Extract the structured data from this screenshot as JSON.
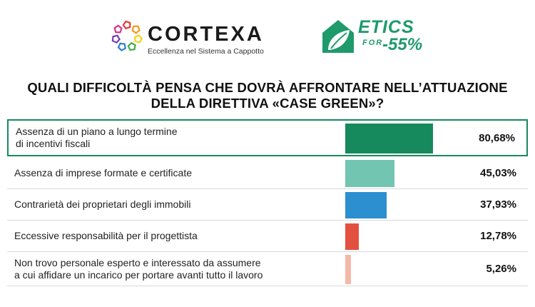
{
  "logos": {
    "cortexa": {
      "name": "CORTEXA",
      "tagline": "Eccellenza nel Sistema a Cappotto",
      "ring_colors": [
        "#e23b3b",
        "#f39a1e",
        "#f6d21f",
        "#3fae49",
        "#2a7fd4",
        "#7a3fb0",
        "#d6338a"
      ]
    },
    "etics": {
      "word": "ETICS",
      "for": "FOR",
      "target": "-55%",
      "color": "#1e9a6b"
    }
  },
  "title": {
    "line1": "QUALI DIFFICOLTÀ PENSA CHE DOVRÀ AFFRONTARE NELL’ATTUAZIONE",
    "line2": "DELLA DIRETTIVA «CASE GREEN»?"
  },
  "chart_data": {
    "type": "bar",
    "orientation": "horizontal",
    "xlim": [
      0,
      100
    ],
    "grid": false,
    "legend": "none",
    "categories": [
      [
        "Assenza di un piano a lungo termine",
        "di incentivi fiscali"
      ],
      [
        "Assenza di imprese formate e certificate"
      ],
      [
        "Contrarietà dei proprietari degli immobili"
      ],
      [
        "Eccessive responsabilità per il progettista"
      ],
      [
        "Non trovo personale esperto e interessato da assumere",
        "a cui affidare un incarico per portare avanti tutto il lavoro"
      ]
    ],
    "values": [
      80.68,
      45.03,
      37.93,
      12.78,
      5.26
    ],
    "value_labels": [
      "80,68%",
      "45,03%",
      "37,93%",
      "12,78%",
      "5,26%"
    ],
    "bar_colors": [
      "#168a5c",
      "#72c5b0",
      "#2b8fd0",
      "#e2513f",
      "#f4b8a8"
    ],
    "highlighted_index": 0
  }
}
